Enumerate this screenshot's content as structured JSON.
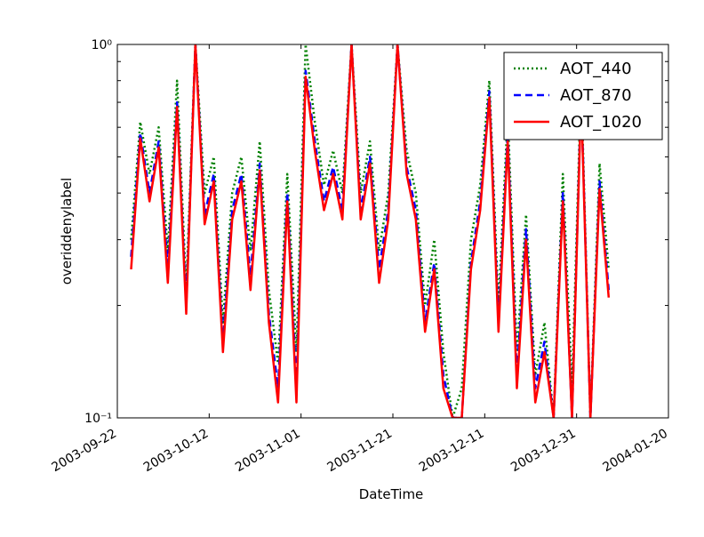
{
  "chart_data": {
    "type": "line",
    "title": "",
    "xlabel": "DateTime",
    "ylabel": "overiddenylabel",
    "y_scale": "log",
    "ylim": [
      0.1,
      1.0
    ],
    "y_tick_labels": [
      {
        "value": 0.1,
        "label": "10⁻¹"
      },
      {
        "value": 1.0,
        "label": "10⁰"
      }
    ],
    "xlim": [
      "2003-09-22",
      "2004-01-20"
    ],
    "x_tick_labels": [
      "2003-09-22",
      "2003-10-12",
      "2003-11-01",
      "2003-11-21",
      "2003-12-11",
      "2003-12-31",
      "2004-01-20"
    ],
    "grid": false,
    "legend_position": "top-right",
    "series": [
      {
        "name": "AOT_440",
        "color": "#008000",
        "style": "dotted",
        "points": [
          [
            "2003-09-25",
            0.3
          ],
          [
            "2003-09-27",
            0.62
          ],
          [
            "2003-09-29",
            0.45
          ],
          [
            "2003-10-01",
            0.6
          ],
          [
            "2003-10-03",
            0.28
          ],
          [
            "2003-10-05",
            0.8
          ],
          [
            "2003-10-07",
            0.22
          ],
          [
            "2003-10-09",
            1.0
          ],
          [
            "2003-10-11",
            0.4
          ],
          [
            "2003-10-13",
            0.5
          ],
          [
            "2003-10-15",
            0.18
          ],
          [
            "2003-10-17",
            0.4
          ],
          [
            "2003-10-19",
            0.5
          ],
          [
            "2003-10-21",
            0.28
          ],
          [
            "2003-10-23",
            0.55
          ],
          [
            "2003-10-25",
            0.22
          ],
          [
            "2003-10-27",
            0.14
          ],
          [
            "2003-10-29",
            0.45
          ],
          [
            "2003-10-31",
            0.15
          ],
          [
            "2003-11-02",
            1.0
          ],
          [
            "2003-11-04",
            0.62
          ],
          [
            "2003-11-06",
            0.42
          ],
          [
            "2003-11-08",
            0.52
          ],
          [
            "2003-11-10",
            0.4
          ],
          [
            "2003-11-12",
            1.0
          ],
          [
            "2003-11-14",
            0.4
          ],
          [
            "2003-11-16",
            0.55
          ],
          [
            "2003-11-18",
            0.28
          ],
          [
            "2003-11-20",
            0.4
          ],
          [
            "2003-11-22",
            1.0
          ],
          [
            "2003-11-24",
            0.52
          ],
          [
            "2003-11-26",
            0.4
          ],
          [
            "2003-11-28",
            0.2
          ],
          [
            "2003-11-30",
            0.3
          ],
          [
            "2003-12-02",
            0.15
          ],
          [
            "2003-12-04",
            0.1
          ],
          [
            "2003-12-06",
            0.12
          ],
          [
            "2003-12-08",
            0.3
          ],
          [
            "2003-12-10",
            0.42
          ],
          [
            "2003-12-12",
            0.8
          ],
          [
            "2003-12-14",
            0.2
          ],
          [
            "2003-12-16",
            0.65
          ],
          [
            "2003-12-18",
            0.15
          ],
          [
            "2003-12-20",
            0.35
          ],
          [
            "2003-12-22",
            0.13
          ],
          [
            "2003-12-24",
            0.18
          ],
          [
            "2003-12-26",
            0.1
          ],
          [
            "2003-12-28",
            0.45
          ],
          [
            "2003-12-30",
            0.12
          ],
          [
            "2004-01-01",
            0.8
          ],
          [
            "2004-01-03",
            0.1
          ],
          [
            "2004-01-05",
            0.48
          ],
          [
            "2004-01-07",
            0.25
          ]
        ]
      },
      {
        "name": "AOT_870",
        "color": "#0000ff",
        "style": "dashed",
        "points": [
          [
            "2003-09-25",
            0.27
          ],
          [
            "2003-09-27",
            0.58
          ],
          [
            "2003-09-29",
            0.4
          ],
          [
            "2003-10-01",
            0.55
          ],
          [
            "2003-10-03",
            0.25
          ],
          [
            "2003-10-05",
            0.7
          ],
          [
            "2003-10-07",
            0.2
          ],
          [
            "2003-10-09",
            1.0
          ],
          [
            "2003-10-11",
            0.35
          ],
          [
            "2003-10-13",
            0.45
          ],
          [
            "2003-10-15",
            0.16
          ],
          [
            "2003-10-17",
            0.36
          ],
          [
            "2003-10-19",
            0.45
          ],
          [
            "2003-10-21",
            0.24
          ],
          [
            "2003-10-23",
            0.48
          ],
          [
            "2003-10-25",
            0.19
          ],
          [
            "2003-10-27",
            0.12
          ],
          [
            "2003-10-29",
            0.4
          ],
          [
            "2003-10-31",
            0.12
          ],
          [
            "2003-11-02",
            0.85
          ],
          [
            "2003-11-04",
            0.55
          ],
          [
            "2003-11-06",
            0.38
          ],
          [
            "2003-11-08",
            0.47
          ],
          [
            "2003-11-10",
            0.36
          ],
          [
            "2003-11-12",
            1.0
          ],
          [
            "2003-11-14",
            0.36
          ],
          [
            "2003-11-16",
            0.5
          ],
          [
            "2003-11-18",
            0.25
          ],
          [
            "2003-11-20",
            0.36
          ],
          [
            "2003-11-22",
            1.0
          ],
          [
            "2003-11-24",
            0.47
          ],
          [
            "2003-11-26",
            0.36
          ],
          [
            "2003-11-28",
            0.18
          ],
          [
            "2003-11-30",
            0.26
          ],
          [
            "2003-12-02",
            0.13
          ],
          [
            "2003-12-04",
            0.1
          ],
          [
            "2003-12-06",
            0.1
          ],
          [
            "2003-12-08",
            0.26
          ],
          [
            "2003-12-10",
            0.38
          ],
          [
            "2003-12-12",
            0.75
          ],
          [
            "2003-12-14",
            0.18
          ],
          [
            "2003-12-16",
            0.58
          ],
          [
            "2003-12-18",
            0.13
          ],
          [
            "2003-12-20",
            0.32
          ],
          [
            "2003-12-22",
            0.12
          ],
          [
            "2003-12-24",
            0.16
          ],
          [
            "2003-12-26",
            0.1
          ],
          [
            "2003-12-28",
            0.4
          ],
          [
            "2003-12-30",
            0.1
          ],
          [
            "2004-01-01",
            0.75
          ],
          [
            "2004-01-03",
            0.1
          ],
          [
            "2004-01-05",
            0.43
          ],
          [
            "2004-01-07",
            0.22
          ]
        ]
      },
      {
        "name": "AOT_1020",
        "color": "#ff0000",
        "style": "solid",
        "points": [
          [
            "2003-09-25",
            0.25
          ],
          [
            "2003-09-27",
            0.56
          ],
          [
            "2003-09-29",
            0.38
          ],
          [
            "2003-10-01",
            0.53
          ],
          [
            "2003-10-03",
            0.23
          ],
          [
            "2003-10-05",
            0.68
          ],
          [
            "2003-10-07",
            0.19
          ],
          [
            "2003-10-09",
            1.0
          ],
          [
            "2003-10-11",
            0.33
          ],
          [
            "2003-10-13",
            0.43
          ],
          [
            "2003-10-15",
            0.15
          ],
          [
            "2003-10-17",
            0.34
          ],
          [
            "2003-10-19",
            0.43
          ],
          [
            "2003-10-21",
            0.22
          ],
          [
            "2003-10-23",
            0.46
          ],
          [
            "2003-10-25",
            0.18
          ],
          [
            "2003-10-27",
            0.11
          ],
          [
            "2003-10-29",
            0.38
          ],
          [
            "2003-10-31",
            0.11
          ],
          [
            "2003-11-02",
            0.82
          ],
          [
            "2003-11-04",
            0.52
          ],
          [
            "2003-11-06",
            0.36
          ],
          [
            "2003-11-08",
            0.45
          ],
          [
            "2003-11-10",
            0.34
          ],
          [
            "2003-11-12",
            1.0
          ],
          [
            "2003-11-14",
            0.34
          ],
          [
            "2003-11-16",
            0.48
          ],
          [
            "2003-11-18",
            0.23
          ],
          [
            "2003-11-20",
            0.34
          ],
          [
            "2003-11-22",
            1.0
          ],
          [
            "2003-11-24",
            0.45
          ],
          [
            "2003-11-26",
            0.34
          ],
          [
            "2003-11-28",
            0.17
          ],
          [
            "2003-11-30",
            0.25
          ],
          [
            "2003-12-02",
            0.12
          ],
          [
            "2003-12-04",
            0.1
          ],
          [
            "2003-12-06",
            0.1
          ],
          [
            "2003-12-08",
            0.25
          ],
          [
            "2003-12-10",
            0.36
          ],
          [
            "2003-12-12",
            0.72
          ],
          [
            "2003-12-14",
            0.17
          ],
          [
            "2003-12-16",
            0.55
          ],
          [
            "2003-12-18",
            0.12
          ],
          [
            "2003-12-20",
            0.3
          ],
          [
            "2003-12-22",
            0.11
          ],
          [
            "2003-12-24",
            0.15
          ],
          [
            "2003-12-26",
            0.1
          ],
          [
            "2003-12-28",
            0.38
          ],
          [
            "2003-12-30",
            0.1
          ],
          [
            "2004-01-01",
            0.72
          ],
          [
            "2004-01-03",
            0.1
          ],
          [
            "2004-01-05",
            0.41
          ],
          [
            "2004-01-07",
            0.21
          ]
        ]
      }
    ]
  }
}
